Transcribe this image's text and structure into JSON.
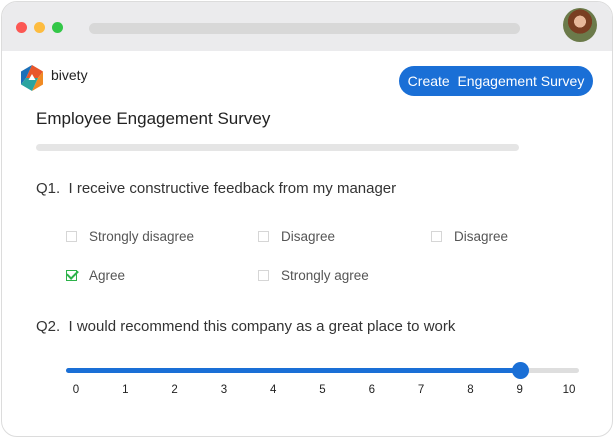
{
  "window": {
    "controls": [
      "close",
      "minimize",
      "maximize"
    ],
    "colors": {
      "close": "#fc5753",
      "minimize": "#fdbc40",
      "maximize": "#33c748"
    }
  },
  "header": {
    "brand": "bivety",
    "cta_label": "Create  Engagement Survey",
    "accent": "#1a6fd6"
  },
  "survey": {
    "title": "Employee Engagement Survey",
    "q1": {
      "text": "Q1.  I receive constructive feedback from my manager",
      "options": [
        {
          "label": "Strongly disagree",
          "checked": false
        },
        {
          "label": "Disagree",
          "checked": false
        },
        {
          "label": "Disagree",
          "checked": false
        },
        {
          "label": "Agree",
          "checked": true
        },
        {
          "label": "Strongly agree",
          "checked": false
        }
      ]
    },
    "q2": {
      "text": "Q2.  I would recommend this company as a great place to work",
      "min": 0,
      "max": 10,
      "value": 9,
      "ticks": [
        "0",
        "1",
        "2",
        "3",
        "4",
        "5",
        "6",
        "7",
        "8",
        "9",
        "10"
      ]
    }
  }
}
